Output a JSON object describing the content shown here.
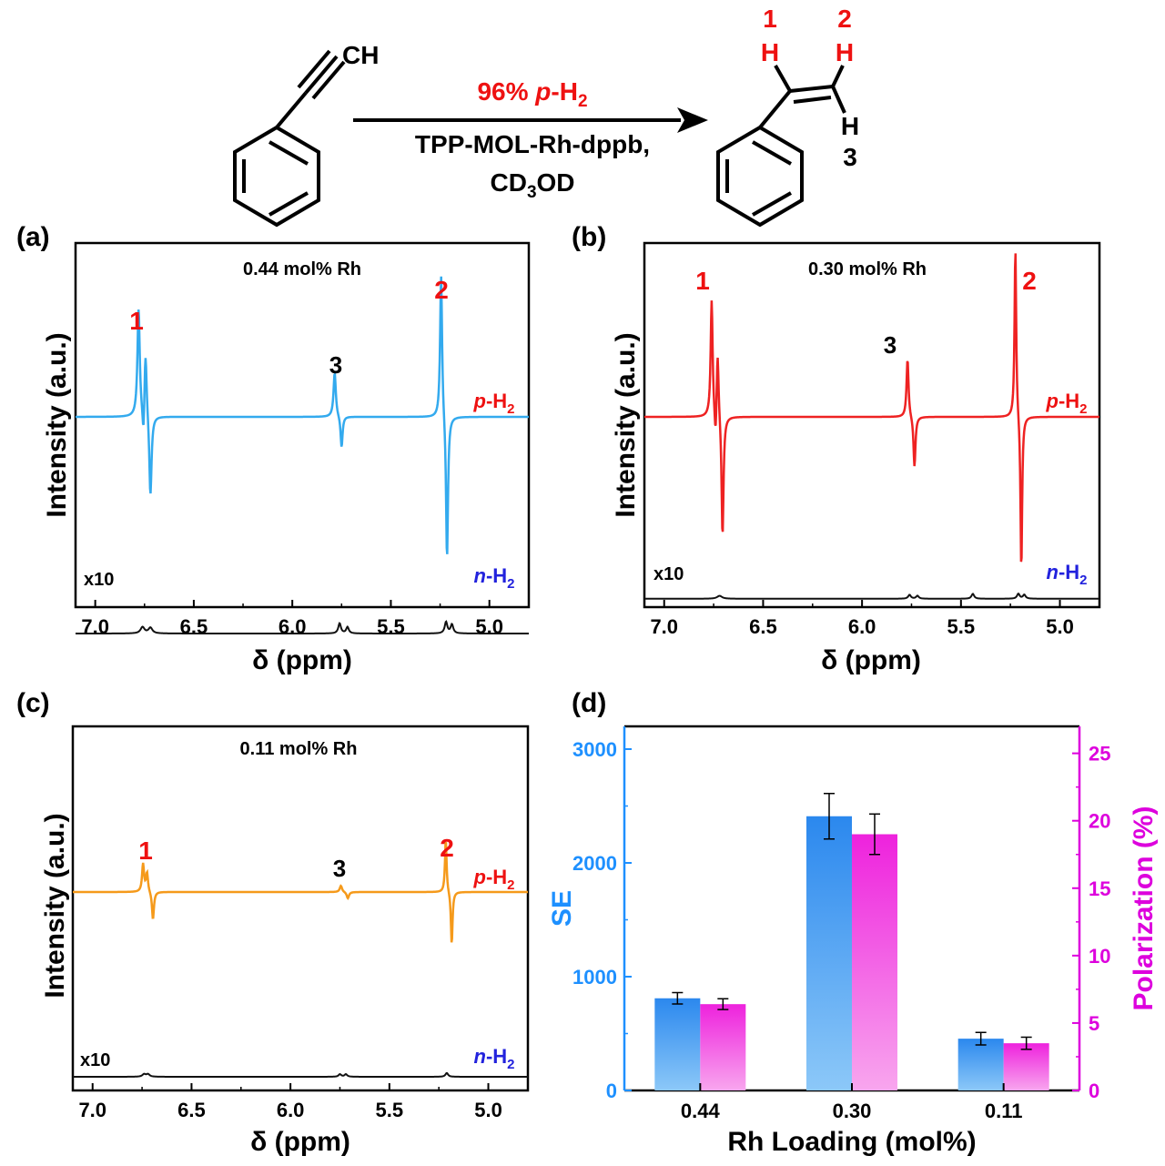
{
  "colors": {
    "red_label": "#ee1111",
    "blue_label": "#2222dd",
    "trace_a": "#33aaee",
    "trace_b": "#ee2222",
    "trace_c": "#f59a1b",
    "trace_n": "#111111",
    "se_axis": "#1e90ff",
    "pol_axis": "#dd00dd",
    "bar_se_top": "#2b88ee",
    "bar_se_bottom": "#8cc8f8",
    "bar_pol_top": "#ee22dd",
    "bar_pol_bottom": "#f8a6ee"
  },
  "scheme": {
    "reactant_label": "CH",
    "condition_top": "96% p-H2",
    "condition_middle": "TPP-MOL-Rh-dppb,",
    "condition_bottom": "CD3OD",
    "proton_1": "1",
    "proton_2": "2",
    "proton_3": "3",
    "h_atom": "H"
  },
  "panels": [
    {
      "tag": "(a)",
      "title": "0.44 mol% Rh",
      "ylabel": "Intensity (a.u.)",
      "xlabel": "δ (ppm)",
      "peak_labels": [
        "1",
        "3",
        "2"
      ],
      "trace_top_label": "p-H2",
      "trace_bottom_label": "n-H2",
      "scale_label": "x10"
    },
    {
      "tag": "(b)",
      "title": "0.30 mol% Rh",
      "ylabel": "Intensity (a.u.)",
      "xlabel": "δ (ppm)",
      "peak_labels": [
        "1",
        "3",
        "2"
      ],
      "trace_top_label": "p-H2",
      "trace_bottom_label": "n-H2",
      "scale_label": "x10"
    },
    {
      "tag": "(c)",
      "title": "0.11 mol% Rh",
      "ylabel": "Intensity (a.u.)",
      "xlabel": "δ (ppm)",
      "peak_labels": [
        "1",
        "3",
        "2"
      ],
      "trace_top_label": "p-H2",
      "trace_bottom_label": "n-H2",
      "scale_label": "x10"
    },
    {
      "tag": "(d)"
    }
  ],
  "chart_data": [
    {
      "type": "line",
      "panel": "(a)",
      "title": "0.44 mol% Rh",
      "xlabel": "δ (ppm)",
      "ylabel": "Intensity (a.u.)",
      "xlim": [
        7.1,
        4.8
      ],
      "xticks": [
        "7.0",
        "6.5",
        "6.0",
        "5.5",
        "5.0"
      ],
      "xtick_values": [
        7.0,
        6.5,
        6.0,
        5.5,
        5.0
      ],
      "series": [
        {
          "name": "p-H2",
          "baseline": 0,
          "peaks": [
            {
              "ppm": 6.78,
              "intensity": 0.85,
              "width": 0.007
            },
            {
              "ppm": 6.755,
              "intensity": -0.28,
              "width": 0.006
            },
            {
              "ppm": 6.745,
              "intensity": 0.55,
              "width": 0.007
            },
            {
              "ppm": 6.72,
              "intensity": -0.65,
              "width": 0.007
            },
            {
              "ppm": 5.785,
              "intensity": 0.35,
              "width": 0.007
            },
            {
              "ppm": 5.75,
              "intensity": -0.25,
              "width": 0.006
            },
            {
              "ppm": 5.245,
              "intensity": 1.15,
              "width": 0.006
            },
            {
              "ppm": 5.215,
              "intensity": -1.15,
              "width": 0.006
            }
          ]
        },
        {
          "name": "n-H2 (x10)",
          "baseline": -1.7,
          "peaks": [
            {
              "ppm": 6.76,
              "intensity": 0.05,
              "width": 0.012
            },
            {
              "ppm": 6.72,
              "intensity": 0.045,
              "width": 0.012
            },
            {
              "ppm": 5.76,
              "intensity": 0.08,
              "width": 0.008
            },
            {
              "ppm": 5.72,
              "intensity": 0.05,
              "width": 0.008
            },
            {
              "ppm": 5.22,
              "intensity": 0.09,
              "width": 0.008
            },
            {
              "ppm": 5.19,
              "intensity": 0.07,
              "width": 0.008
            }
          ]
        }
      ]
    },
    {
      "type": "line",
      "panel": "(b)",
      "title": "0.30 mol% Rh",
      "xlabel": "δ (ppm)",
      "ylabel": "Intensity (a.u.)",
      "xlim": [
        7.1,
        4.8
      ],
      "xticks": [
        "7.0",
        "6.5",
        "6.0",
        "5.5",
        "5.0"
      ],
      "xtick_values": [
        7.0,
        6.5,
        6.0,
        5.5,
        5.0
      ],
      "series": [
        {
          "name": "p-H2",
          "baseline": 0,
          "peaks": [
            {
              "ppm": 6.76,
              "intensity": 1.2,
              "width": 0.006
            },
            {
              "ppm": 6.74,
              "intensity": -0.35,
              "width": 0.006
            },
            {
              "ppm": 6.73,
              "intensity": 0.72,
              "width": 0.006
            },
            {
              "ppm": 6.705,
              "intensity": -1.25,
              "width": 0.006
            },
            {
              "ppm": 5.77,
              "intensity": 0.6,
              "width": 0.006
            },
            {
              "ppm": 5.735,
              "intensity": -0.52,
              "width": 0.006
            },
            {
              "ppm": 5.225,
              "intensity": 1.75,
              "width": 0.005
            },
            {
              "ppm": 5.195,
              "intensity": -1.6,
              "width": 0.005
            }
          ]
        },
        {
          "name": "n-H2 (x10)",
          "baseline": -1.85,
          "peaks": [
            {
              "ppm": 6.72,
              "intensity": 0.03,
              "width": 0.015
            },
            {
              "ppm": 5.76,
              "intensity": 0.04,
              "width": 0.008
            },
            {
              "ppm": 5.72,
              "intensity": 0.03,
              "width": 0.008
            },
            {
              "ppm": 5.44,
              "intensity": 0.05,
              "width": 0.008
            },
            {
              "ppm": 5.21,
              "intensity": 0.05,
              "width": 0.008
            },
            {
              "ppm": 5.18,
              "intensity": 0.04,
              "width": 0.008
            }
          ]
        }
      ]
    },
    {
      "type": "line",
      "panel": "(c)",
      "title": "0.11 mol% Rh",
      "xlabel": "δ (ppm)",
      "ylabel": "Intensity (a.u.)",
      "xlim": [
        7.1,
        4.8
      ],
      "xticks": [
        "7.0",
        "6.5",
        "6.0",
        "5.5",
        "5.0"
      ],
      "xtick_values": [
        7.0,
        6.5,
        6.0,
        5.5,
        5.0
      ],
      "series": [
        {
          "name": "p-H2",
          "baseline": 0,
          "peaks": [
            {
              "ppm": 6.745,
              "intensity": 0.22,
              "width": 0.006
            },
            {
              "ppm": 6.725,
              "intensity": 0.15,
              "width": 0.006
            },
            {
              "ppm": 6.695,
              "intensity": -0.22,
              "width": 0.006
            },
            {
              "ppm": 5.745,
              "intensity": 0.05,
              "width": 0.007
            },
            {
              "ppm": 5.71,
              "intensity": -0.05,
              "width": 0.007
            },
            {
              "ppm": 5.215,
              "intensity": 0.42,
              "width": 0.005
            },
            {
              "ppm": 5.185,
              "intensity": -0.42,
              "width": 0.005
            }
          ]
        },
        {
          "name": "n-H2 (x10)",
          "baseline": -1.45,
          "peaks": [
            {
              "ppm": 6.74,
              "intensity": 0.02,
              "width": 0.01
            },
            {
              "ppm": 6.72,
              "intensity": 0.02,
              "width": 0.01
            },
            {
              "ppm": 5.75,
              "intensity": 0.02,
              "width": 0.008
            },
            {
              "ppm": 5.72,
              "intensity": 0.02,
              "width": 0.008
            },
            {
              "ppm": 5.21,
              "intensity": 0.03,
              "width": 0.008
            }
          ]
        }
      ]
    },
    {
      "type": "bar",
      "panel": "(d)",
      "xlabel": "Rh Loading (mol%)",
      "ylabel_left": "SE",
      "ylabel_right": "Polarization (%)",
      "categories": [
        "0.44",
        "0.30",
        "0.11"
      ],
      "ylim_left": [
        0,
        3200
      ],
      "yticks_left": [
        "0",
        "1000",
        "2000",
        "3000"
      ],
      "ytick_values_left": [
        0,
        1000,
        2000,
        3000
      ],
      "ylim_right": [
        0,
        27
      ],
      "yticks_right": [
        "0",
        "5",
        "10",
        "15",
        "20",
        "25"
      ],
      "ytick_values_right": [
        0,
        5,
        10,
        15,
        20,
        25
      ],
      "series": [
        {
          "name": "SE",
          "axis": "left",
          "values": [
            810,
            2410,
            455
          ],
          "errors": [
            50,
            200,
            55
          ]
        },
        {
          "name": "Polarization (%)",
          "axis": "right",
          "values": [
            6.4,
            19.0,
            3.5
          ],
          "errors": [
            0.4,
            1.5,
            0.45
          ]
        }
      ]
    }
  ]
}
